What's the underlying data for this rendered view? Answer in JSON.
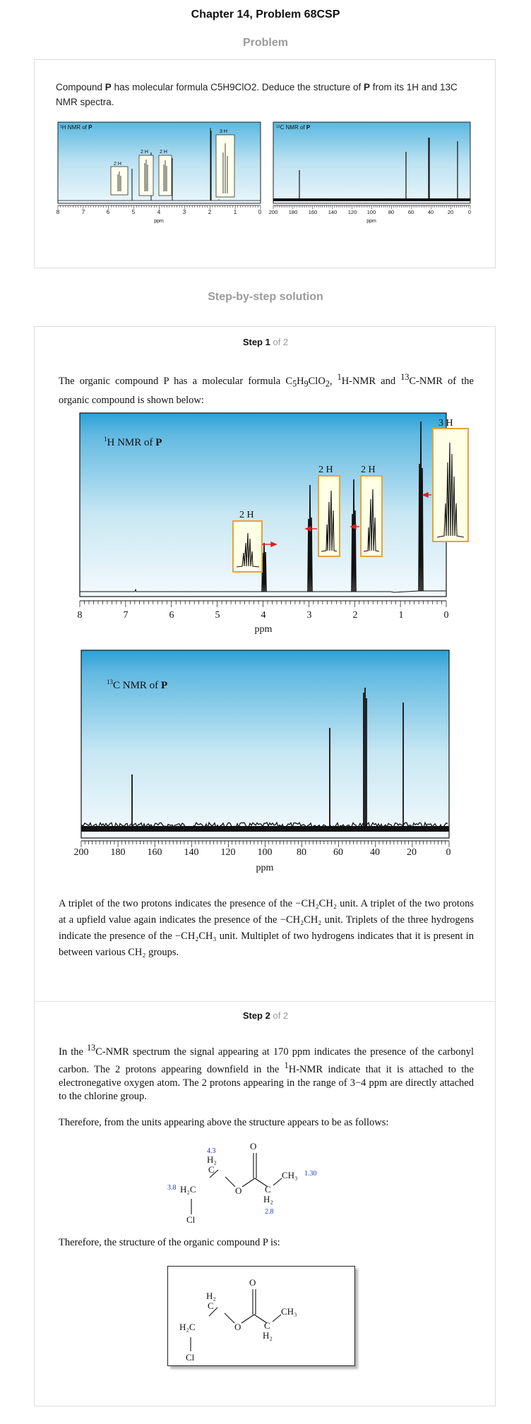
{
  "page": {
    "title": "Chapter 14, Problem 68CSP",
    "problem_heading": "Problem",
    "solution_heading": "Step-by-step solution"
  },
  "problem": {
    "text_1": "Compound ",
    "text_bold": "P",
    "text_2": " has molecular formula C5H9ClO2. Deduce the structure of ",
    "text_bold_2": "P",
    "text_3": " from its 1H and 13C NMR spectra.",
    "h_spectrum": {
      "label_prefix": "1",
      "label": "H NMR of ",
      "label_bold": "P",
      "xlabel": "ppm",
      "ticks": [
        "8",
        "7",
        "6",
        "5",
        "4",
        "3",
        "2",
        "1",
        "0"
      ],
      "peak_labels": [
        "2 H",
        "2 H",
        "2 H",
        "3 H"
      ]
    },
    "c_spectrum": {
      "label_prefix": "13",
      "label": "C NMR of ",
      "label_bold": "P",
      "xlabel": "ppm",
      "ticks": [
        "200",
        "180",
        "160",
        "140",
        "120",
        "100",
        "80",
        "60",
        "40",
        "20",
        "0"
      ]
    }
  },
  "step1": {
    "label": "Step 1",
    "of": "of 2",
    "intro_1": "The organic compound P has a molecular formula C",
    "intro_2": "H",
    "intro_3": "ClO",
    "intro_4": ", ",
    "intro_5": "H-NMR and ",
    "intro_6": "C-NMR of the organic compound is shown below:",
    "sub_5": "5",
    "sub_9": "9",
    "sub_2": "2",
    "sup_1": "1",
    "sup_13": "13",
    "h_nmr": {
      "label_prefix": "1",
      "label": "H NMR of ",
      "label_bold": "P",
      "xlabel": "ppm",
      "ticks": [
        "8",
        "7",
        "6",
        "5",
        "4",
        "3",
        "2",
        "1",
        "0"
      ],
      "peak_labels": [
        "2 H",
        "2 H",
        "2 H",
        "3 H"
      ]
    },
    "c_nmr": {
      "label_prefix": "13",
      "label": "C NMR of ",
      "label_bold": "P",
      "xlabel": "ppm",
      "ticks": [
        "200",
        "180",
        "160",
        "140",
        "120",
        "100",
        "80",
        "60",
        "40",
        "20",
        "0"
      ]
    },
    "analysis": "A triplet of the two protons indicates the presence of the −CH₂CH₂ unit. A triplet of the two protons at a upfield value again indicates the presence of the −CH₂CH₂ unit. Triplets of the three hydrogens indicate the presence of the −CH₂CH₃ unit. Multiplet of two hydrogens indicates that it is present in between various CH₂ groups."
  },
  "step2": {
    "label": "Step 2",
    "of": "of 2",
    "para1_a": "In the ",
    "para1_sup": "13",
    "para1_b": "C-NMR spectrum the signal appearing at 170 ppm indicates the presence of the carbonyl carbon. The 2 protons appearing downfield in the ",
    "para1_sup2": "1",
    "para1_c": "H-NMR indicate that it is attached to the electronegative oxygen atom. The 2 protons appearing in the range of 3−4 ppm are directly attached to the chlorine group.",
    "para2": "Therefore, from the units appearing above the structure appears to be as follows:",
    "para3": "Therefore, the structure of the organic compound P is:",
    "structure_labels": {
      "o_top": "O",
      "ch2_o": "H₂",
      "c_1": "C",
      "o_ester": "O",
      "h2c": "H₂C",
      "cl": "Cl",
      "c_2": "C",
      "h2_2": "H₂",
      "ch3": "CH₃"
    },
    "shift_labels": {
      "s43": "4.3",
      "s38": "3.8",
      "s130": "1.30",
      "s28": "2.8"
    }
  }
}
